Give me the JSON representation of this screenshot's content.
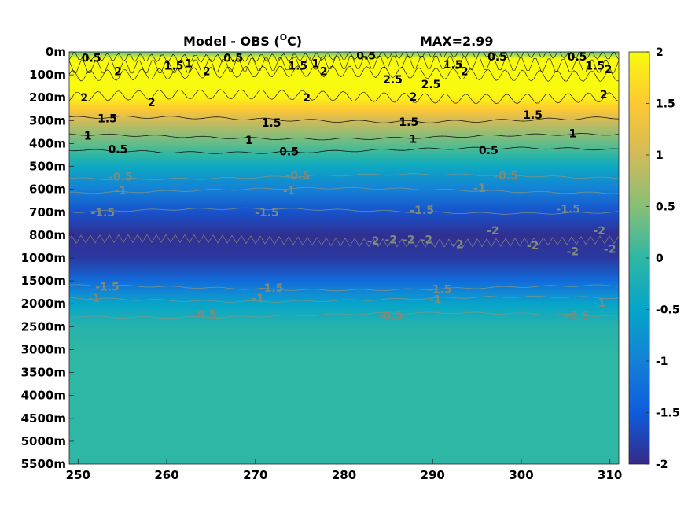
{
  "chart_data": {
    "type": "heatmap",
    "title": "Model - OBS (",
    "title_unit_sup": "O",
    "title_unit_tail": "C)",
    "max_label": "MAX=2.99",
    "xlabel": "",
    "ylabel": "",
    "x_ticks": [
      "250",
      "260",
      "270",
      "280",
      "290",
      "300",
      "310"
    ],
    "x_range": [
      249,
      311
    ],
    "y_ticks": [
      "0m",
      "100m",
      "200m",
      "300m",
      "400m",
      "500m",
      "600m",
      "700m",
      "800m",
      "1000m",
      "1500m",
      "2000m",
      "2500m",
      "3000m",
      "3500m",
      "4000m",
      "4500m",
      "5000m",
      "5500m"
    ],
    "colorbar_ticks": [
      "2",
      "1.5",
      "1",
      "0.5",
      "0",
      "-0.5",
      "-1",
      "-1.5",
      "-2"
    ],
    "colorbar_range": [
      -2,
      2
    ],
    "colormap": "parula",
    "colormap_stops": [
      "#352a87",
      "#0f5cdd",
      "#1481d6",
      "#06a4ca",
      "#2eb7a4",
      "#87bf77",
      "#d1bb59",
      "#fec832",
      "#f9fb0e"
    ],
    "depth_profile": [
      {
        "level": 0,
        "value": 0.3
      },
      {
        "level": 0.3,
        "value": 2.2
      },
      {
        "level": 1,
        "value": 2.5
      },
      {
        "level": 1.5,
        "value": 2.2
      },
      {
        "level": 2,
        "value": 1.9
      },
      {
        "level": 2.5,
        "value": 1.5
      },
      {
        "level": 3,
        "value": 1.0
      },
      {
        "level": 4,
        "value": 0.3
      },
      {
        "level": 4.5,
        "value": 0.0
      },
      {
        "level": 5,
        "value": -0.4
      },
      {
        "level": 6,
        "value": -1.0
      },
      {
        "level": 7,
        "value": -1.6
      },
      {
        "level": 8,
        "value": -1.95
      },
      {
        "level": 9,
        "value": -1.85
      },
      {
        "level": 10,
        "value": -1.3
      },
      {
        "level": 10.5,
        "value": -0.9
      },
      {
        "level": 11,
        "value": -0.5
      },
      {
        "level": 12,
        "value": -0.1
      },
      {
        "level": 13,
        "value": 0.0
      },
      {
        "level": 18,
        "value": 0.0
      }
    ],
    "contour_labels": [
      {
        "text": "0.5",
        "x": 251.5,
        "level": 0.25,
        "sign": "pos"
      },
      {
        "text": "2",
        "x": 254.5,
        "level": 0.85,
        "sign": "pos"
      },
      {
        "text": "1.5",
        "x": 260.8,
        "level": 0.6,
        "sign": "pos"
      },
      {
        "text": "1",
        "x": 262.5,
        "level": 0.5,
        "sign": "pos"
      },
      {
        "text": "2",
        "x": 264.5,
        "level": 0.85,
        "sign": "pos"
      },
      {
        "text": "0.5",
        "x": 267.5,
        "level": 0.25,
        "sign": "pos"
      },
      {
        "text": "1.5",
        "x": 274.8,
        "level": 0.6,
        "sign": "pos"
      },
      {
        "text": "1",
        "x": 276.8,
        "level": 0.5,
        "sign": "pos"
      },
      {
        "text": "2",
        "x": 277.7,
        "level": 0.85,
        "sign": "pos"
      },
      {
        "text": "0.5",
        "x": 282.5,
        "level": 0.15,
        "sign": "pos"
      },
      {
        "text": "2.5",
        "x": 285.5,
        "level": 1.2,
        "sign": "pos"
      },
      {
        "text": "2.5",
        "x": 289.8,
        "level": 1.4,
        "sign": "pos"
      },
      {
        "text": "1.5",
        "x": 292.3,
        "level": 0.55,
        "sign": "pos"
      },
      {
        "text": "2",
        "x": 293.6,
        "level": 0.85,
        "sign": "pos"
      },
      {
        "text": "0.5",
        "x": 297.3,
        "level": 0.2,
        "sign": "pos"
      },
      {
        "text": "0.5",
        "x": 306.3,
        "level": 0.2,
        "sign": "pos"
      },
      {
        "text": "1.5",
        "x": 308.3,
        "level": 0.6,
        "sign": "pos"
      },
      {
        "text": "2",
        "x": 309.8,
        "level": 0.75,
        "sign": "pos"
      },
      {
        "text": "2",
        "x": 309.3,
        "level": 1.85,
        "sign": "pos"
      },
      {
        "text": "2",
        "x": 250.7,
        "level": 2.0,
        "sign": "pos"
      },
      {
        "text": "2",
        "x": 258.3,
        "level": 2.2,
        "sign": "pos"
      },
      {
        "text": "2",
        "x": 275.8,
        "level": 2.0,
        "sign": "pos"
      },
      {
        "text": "2",
        "x": 287.8,
        "level": 1.95,
        "sign": "pos"
      },
      {
        "text": "1.5",
        "x": 253.3,
        "level": 2.9,
        "sign": "pos"
      },
      {
        "text": "1.5",
        "x": 271.8,
        "level": 3.1,
        "sign": "pos"
      },
      {
        "text": "1.5",
        "x": 287.3,
        "level": 3.05,
        "sign": "pos"
      },
      {
        "text": "1.5",
        "x": 301.3,
        "level": 2.75,
        "sign": "pos"
      },
      {
        "text": "1",
        "x": 251.1,
        "level": 3.65,
        "sign": "pos"
      },
      {
        "text": "1",
        "x": 269.3,
        "level": 3.85,
        "sign": "pos"
      },
      {
        "text": "1",
        "x": 287.8,
        "level": 3.8,
        "sign": "pos"
      },
      {
        "text": "1",
        "x": 305.8,
        "level": 3.55,
        "sign": "pos"
      },
      {
        "text": "0.5",
        "x": 254.5,
        "level": 4.25,
        "sign": "pos"
      },
      {
        "text": "0.5",
        "x": 273.8,
        "level": 4.35,
        "sign": "pos"
      },
      {
        "text": "0.5",
        "x": 296.3,
        "level": 4.3,
        "sign": "pos"
      },
      {
        "text": "-0.5",
        "x": 254.8,
        "level": 5.45,
        "sign": "neg"
      },
      {
        "text": "-0.5",
        "x": 274.8,
        "level": 5.4,
        "sign": "neg"
      },
      {
        "text": "-0.5",
        "x": 298.3,
        "level": 5.4,
        "sign": "neg"
      },
      {
        "text": "-1",
        "x": 254.8,
        "level": 6.05,
        "sign": "neg"
      },
      {
        "text": "-1",
        "x": 273.8,
        "level": 6.05,
        "sign": "neg"
      },
      {
        "text": "-1",
        "x": 295.3,
        "level": 5.95,
        "sign": "neg"
      },
      {
        "text": "-1.5",
        "x": 252.8,
        "level": 7.0,
        "sign": "neg"
      },
      {
        "text": "-1.5",
        "x": 271.3,
        "level": 7.0,
        "sign": "neg"
      },
      {
        "text": "-1.5",
        "x": 288.8,
        "level": 6.9,
        "sign": "neg"
      },
      {
        "text": "-1.5",
        "x": 305.3,
        "level": 6.85,
        "sign": "neg"
      },
      {
        "text": "-2",
        "x": 283.3,
        "level": 8.25,
        "sign": "neg"
      },
      {
        "text": "-2",
        "x": 285.3,
        "level": 8.2,
        "sign": "neg"
      },
      {
        "text": "-2",
        "x": 287.3,
        "level": 8.2,
        "sign": "neg"
      },
      {
        "text": "-2",
        "x": 289.3,
        "level": 8.2,
        "sign": "neg"
      },
      {
        "text": "-2",
        "x": 292.8,
        "level": 8.4,
        "sign": "neg"
      },
      {
        "text": "-2",
        "x": 296.8,
        "level": 7.8,
        "sign": "neg"
      },
      {
        "text": "-2",
        "x": 301.3,
        "level": 8.45,
        "sign": "neg"
      },
      {
        "text": "-2",
        "x": 305.8,
        "level": 8.7,
        "sign": "neg"
      },
      {
        "text": "-2",
        "x": 308.8,
        "level": 7.8,
        "sign": "neg"
      },
      {
        "text": "-2",
        "x": 310.0,
        "level": 8.6,
        "sign": "neg"
      },
      {
        "text": "-1.5",
        "x": 253.3,
        "level": 10.25,
        "sign": "neg"
      },
      {
        "text": "-1.5",
        "x": 271.8,
        "level": 10.3,
        "sign": "neg"
      },
      {
        "text": "-1.5",
        "x": 290.8,
        "level": 10.35,
        "sign": "neg"
      },
      {
        "text": "-1",
        "x": 251.8,
        "level": 10.75,
        "sign": "neg"
      },
      {
        "text": "-1",
        "x": 270.3,
        "level": 10.75,
        "sign": "neg"
      },
      {
        "text": "-1",
        "x": 290.3,
        "level": 10.8,
        "sign": "neg"
      },
      {
        "text": "-1",
        "x": 308.8,
        "level": 10.95,
        "sign": "neg"
      },
      {
        "text": "-0.5",
        "x": 264.3,
        "level": 11.45,
        "sign": "neg"
      },
      {
        "text": "-0.5",
        "x": 285.3,
        "level": 11.5,
        "sign": "neg"
      },
      {
        "text": "-0.5",
        "x": 306.3,
        "level": 11.5,
        "sign": "neg"
      }
    ]
  }
}
